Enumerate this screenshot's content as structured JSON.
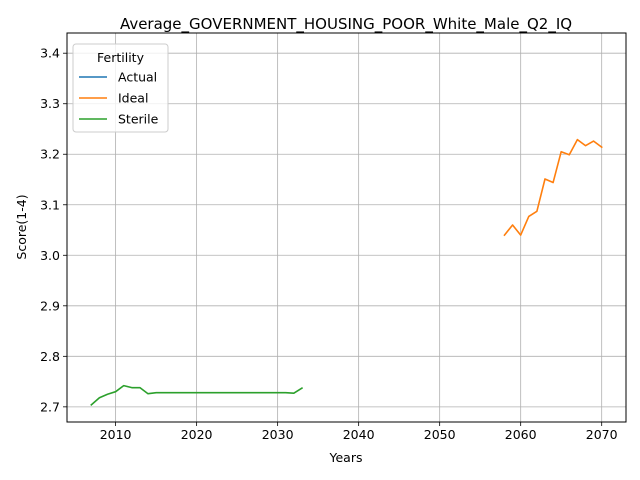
{
  "chart_data": {
    "type": "line",
    "title": "Average_GOVERNMENT_HOUSING_POOR_White_Male_Q2_IQ",
    "xlabel": "Years",
    "ylabel": "Score(1-4)",
    "xlim": [
      2004,
      2073
    ],
    "ylim": [
      2.67,
      3.44
    ],
    "xticks": [
      2010,
      2020,
      2030,
      2040,
      2050,
      2060,
      2070
    ],
    "yticks": [
      2.7,
      2.8,
      2.9,
      3.0,
      3.1,
      3.2,
      3.3,
      3.4
    ],
    "grid": true,
    "legend": {
      "title": "Fertility",
      "placement": "top-left"
    },
    "series": [
      {
        "name": "Actual",
        "color": "#1f77b4",
        "x": [],
        "y": []
      },
      {
        "name": "Ideal",
        "color": "#ff7f0e",
        "x": [
          2058,
          2059,
          2060,
          2061,
          2062,
          2063,
          2064,
          2065,
          2066,
          2067,
          2068,
          2069,
          2070
        ],
        "y": [
          3.04,
          3.06,
          3.04,
          3.077,
          3.087,
          3.151,
          3.144,
          3.205,
          3.199,
          3.229,
          3.217,
          3.226,
          3.214
        ]
      },
      {
        "name": "Sterile",
        "color": "#2ca02c",
        "x": [
          2007,
          2008,
          2009,
          2010,
          2011,
          2012,
          2013,
          2014,
          2015,
          2016,
          2017,
          2018,
          2019,
          2020,
          2021,
          2022,
          2023,
          2024,
          2025,
          2026,
          2027,
          2028,
          2029,
          2030,
          2031,
          2032,
          2033
        ],
        "y": [
          2.704,
          2.718,
          2.725,
          2.73,
          2.742,
          2.738,
          2.738,
          2.726,
          2.728,
          2.728,
          2.728,
          2.728,
          2.728,
          2.728,
          2.728,
          2.728,
          2.728,
          2.728,
          2.728,
          2.728,
          2.728,
          2.728,
          2.728,
          2.728,
          2.728,
          2.727,
          2.737
        ]
      }
    ]
  }
}
